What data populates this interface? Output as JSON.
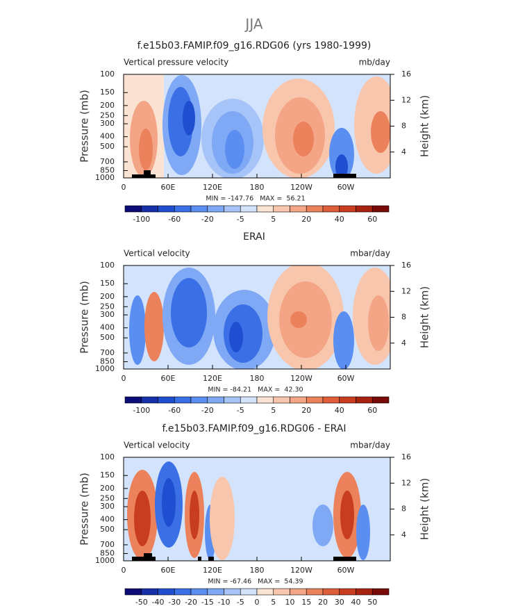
{
  "title": "JJA",
  "chart_data": [
    {
      "type": "contour",
      "title": "f.e15b03.FAMIP.f09_g16.RDG06 (yrs 1980-1999)",
      "left_label": "Vertical pressure velocity",
      "right_label": "mb/day",
      "ylabel": "Pressure (mb)",
      "y2label": "Height (km)",
      "xlim": [
        0,
        360
      ],
      "xticks": [
        0,
        {
          "value": 60,
          "label": "60E"
        },
        {
          "value": 120,
          "label": "120E"
        },
        180,
        {
          "value": 240,
          "label": "120W"
        },
        {
          "value": 300,
          "label": "60W"
        }
      ],
      "ylim": [
        1000,
        100
      ],
      "log_y": true,
      "yticks": [
        100,
        150,
        200,
        250,
        300,
        400,
        500,
        700,
        850,
        1000
      ],
      "y2lim": [
        0,
        16
      ],
      "y2ticks": [
        4,
        8,
        12,
        16
      ],
      "stats": "MIN = -147.76   MAX =  56.21",
      "colorbar_labels": [
        -100,
        -60,
        -20,
        -5,
        5,
        20,
        40,
        60
      ],
      "colors": [
        "#0c0c78",
        "#1530a8",
        "#1f4fd0",
        "#3a6fe6",
        "#5a8ef0",
        "#7fa8f5",
        "#a6c4f8",
        "#d3e3fb",
        "#fbe3d4",
        "#f8c6ad",
        "#f3a585",
        "#ec825c",
        "#df5e3a",
        "#c83c20",
        "#a82210",
        "#780a08"
      ]
    },
    {
      "type": "contour",
      "title": "ERAI",
      "left_label": "Vertical velocity",
      "right_label": "mbar/day",
      "ylabel": "Pressure (mb)",
      "y2label": "Height (km)",
      "xlim": [
        0,
        360
      ],
      "xticks": [
        0,
        {
          "value": 60,
          "label": "60E"
        },
        {
          "value": 120,
          "label": "120E"
        },
        180,
        {
          "value": 240,
          "label": "120W"
        },
        {
          "value": 300,
          "label": "60W"
        }
      ],
      "ylim": [
        1000,
        100
      ],
      "log_y": true,
      "yticks": [
        100,
        150,
        200,
        250,
        300,
        400,
        500,
        700,
        850,
        1000
      ],
      "y2lim": [
        0,
        16
      ],
      "y2ticks": [
        4,
        8,
        12,
        16
      ],
      "stats": "MIN = -84.21   MAX =  42.30",
      "colorbar_labels": [
        -100,
        -60,
        -20,
        -5,
        5,
        20,
        40,
        60
      ],
      "colors": [
        "#0c0c78",
        "#1530a8",
        "#1f4fd0",
        "#3a6fe6",
        "#5a8ef0",
        "#7fa8f5",
        "#a6c4f8",
        "#d3e3fb",
        "#fbe3d4",
        "#f8c6ad",
        "#f3a585",
        "#ec825c",
        "#df5e3a",
        "#c83c20",
        "#a82210",
        "#780a08"
      ]
    },
    {
      "type": "contour",
      "title": "f.e15b03.FAMIP.f09_g16.RDG06 - ERAI",
      "left_label": "Vertical velocity",
      "right_label": "mbar/day",
      "ylabel": "Pressure (mb)",
      "y2label": "Height (km)",
      "xlim": [
        0,
        360
      ],
      "xticks": [
        0,
        {
          "value": 60,
          "label": "60E"
        },
        {
          "value": 120,
          "label": "120E"
        },
        180,
        {
          "value": 240,
          "label": "120W"
        },
        {
          "value": 300,
          "label": "60W"
        }
      ],
      "ylim": [
        1000,
        100
      ],
      "log_y": true,
      "yticks": [
        100,
        150,
        200,
        250,
        300,
        400,
        500,
        700,
        850,
        1000
      ],
      "y2lim": [
        0,
        16
      ],
      "y2ticks": [
        4,
        8,
        12,
        16
      ],
      "stats": "MIN = -67.46   MAX =  54.39",
      "colorbar_labels": [
        -50,
        -40,
        -30,
        -20,
        -15,
        -10,
        -5,
        0,
        5,
        10,
        15,
        20,
        30,
        40,
        50
      ],
      "colors": [
        "#0c0c78",
        "#1530a8",
        "#1f4fd0",
        "#3a6fe6",
        "#5a8ef0",
        "#7fa8f5",
        "#a6c4f8",
        "#d3e3fb",
        "#fbe3d4",
        "#f8c6ad",
        "#f3a585",
        "#ec825c",
        "#df5e3a",
        "#c83c20",
        "#a82210",
        "#780a08"
      ]
    }
  ]
}
